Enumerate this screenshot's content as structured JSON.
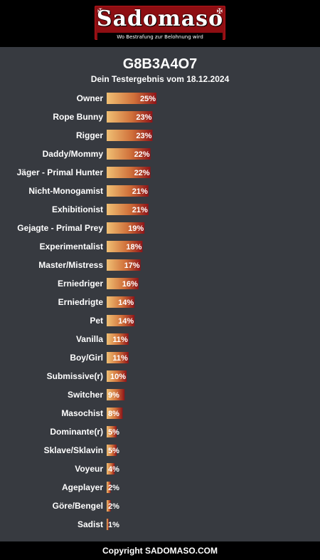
{
  "header": {
    "logo_text": "Sadomaso",
    "logo_tagline": "Wo Bestrafung zur Belohnung wird",
    "logo_ornament": "✠"
  },
  "result": {
    "code": "G8B3A4O7",
    "subtitle": "Dein Testergebnis vom 18.12.2024"
  },
  "colors": {
    "bar_start": "#f0c074",
    "bar_mid": "#d0703a",
    "bar_end": "#8e1418",
    "panel_bg": "#373a40"
  },
  "chart_data": {
    "type": "bar",
    "orientation": "horizontal",
    "value_format": "percent",
    "categories": [
      "Owner",
      "Rope Bunny",
      "Rigger",
      "Daddy/Mommy",
      "Jäger - Primal Hunter",
      "Nicht-Monogamist",
      "Exhibitionist",
      "Gejagte - Primal Prey",
      "Experimentalist",
      "Master/Mistress",
      "Erniedriger",
      "Erniedrigte",
      "Pet",
      "Vanilla",
      "Boy/Girl",
      "Submissive(r)",
      "Switcher",
      "Masochist",
      "Dominante(r)",
      "Sklave/Sklavin",
      "Voyeur",
      "Ageplayer",
      "Göre/Bengel",
      "Sadist"
    ],
    "values": [
      25,
      23,
      23,
      22,
      22,
      21,
      21,
      19,
      18,
      17,
      16,
      14,
      14,
      11,
      11,
      10,
      9,
      8,
      5,
      5,
      4,
      2,
      2,
      1
    ],
    "labels": [
      "25%",
      "23%",
      "23%",
      "22%",
      "22%",
      "21%",
      "21%",
      "19%",
      "18%",
      "17%",
      "16%",
      "14%",
      "14%",
      "11%",
      "11%",
      "10%",
      "9%",
      "8%",
      "5%",
      "5%",
      "4%",
      "2%",
      "2%",
      "1%"
    ],
    "xlim": [
      0,
      100
    ],
    "grid": false,
    "legend": "none"
  },
  "footer": {
    "copyright": "Copyright SADOMASO.COM"
  }
}
